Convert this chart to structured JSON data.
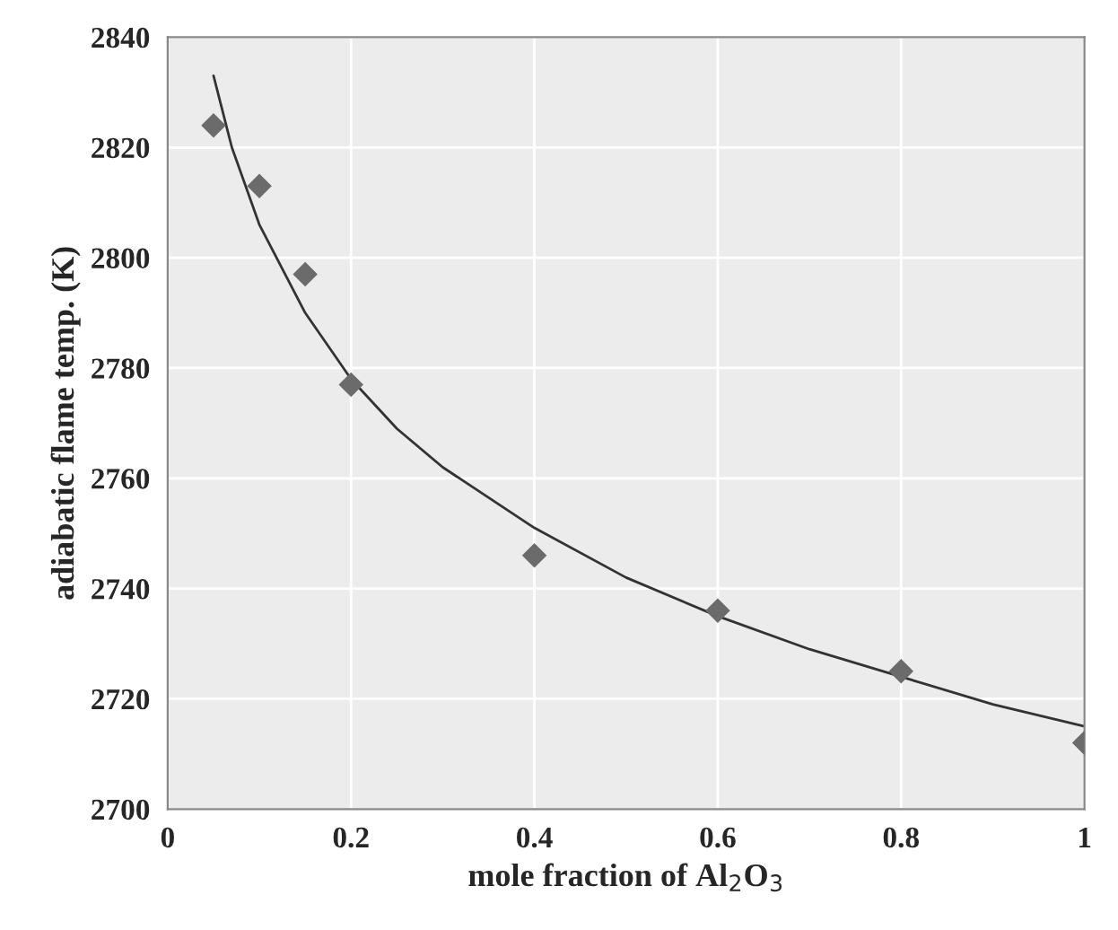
{
  "chart_data": {
    "type": "scatter",
    "xlabel": "mole fraction of Al$_{2}$O$_{3}$",
    "ylabel": "adiabatic flame temp. (K)",
    "xlim": [
      0,
      1
    ],
    "xticks": [
      0,
      0.2,
      0.4,
      0.6,
      0.8,
      {
        "value": 1,
        "label": "1"
      }
    ],
    "ylim": [
      2700,
      2840
    ],
    "yticks": [
      2700,
      2720,
      2740,
      2760,
      2780,
      2800,
      2820,
      2840
    ],
    "grid": true,
    "marker": "diamond",
    "series": [
      {
        "color": "#6b6b6b",
        "x": [
          0.05,
          0.1,
          0.15,
          0.2,
          0.4,
          0.6,
          0.8,
          1.0
        ],
        "values": [
          2824,
          2813,
          2797,
          2777,
          2746,
          2736,
          2725,
          2712
        ]
      },
      {
        "type": "line",
        "color": "#333333",
        "line_style": "solid",
        "marker": "none",
        "x": [
          0.05,
          0.07,
          0.1,
          0.15,
          0.2,
          0.25,
          0.3,
          0.4,
          0.5,
          0.6,
          0.7,
          0.8,
          0.9,
          1.0
        ],
        "values": [
          2833,
          2820,
          2806,
          2790,
          2778,
          2769,
          2762,
          2751,
          2742,
          2735,
          2729,
          2724,
          2719,
          2715
        ]
      }
    ]
  }
}
